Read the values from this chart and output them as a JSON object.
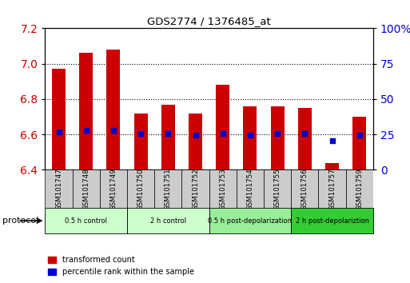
{
  "title": "GDS2774 / 1376485_at",
  "samples": [
    "GSM101747",
    "GSM101748",
    "GSM101749",
    "GSM101750",
    "GSM101751",
    "GSM101752",
    "GSM101753",
    "GSM101754",
    "GSM101755",
    "GSM101756",
    "GSM101757",
    "GSM101759"
  ],
  "transformed_counts": [
    6.97,
    7.06,
    7.08,
    6.72,
    6.77,
    6.72,
    6.88,
    6.76,
    6.76,
    6.75,
    6.44,
    6.7
  ],
  "percentile_ranks": [
    6.615,
    6.625,
    6.625,
    6.605,
    6.605,
    6.595,
    6.605,
    6.595,
    6.605,
    6.605,
    6.565,
    6.595
  ],
  "ylim_left": [
    6.4,
    7.2
  ],
  "ylim_right": [
    0,
    100
  ],
  "yticks_left": [
    6.4,
    6.6,
    6.8,
    7.0,
    7.2
  ],
  "yticks_right": [
    0,
    25,
    50,
    75,
    100
  ],
  "bar_color": "#cc0000",
  "dot_color": "#0000cc",
  "bar_bottom": 6.4,
  "protocol_groups": [
    {
      "label": "0.5 h control",
      "start": 0,
      "end": 3,
      "color": "#ccffcc"
    },
    {
      "label": "2 h control",
      "start": 3,
      "end": 6,
      "color": "#ccffcc"
    },
    {
      "label": "0.5 h post-depolarization",
      "start": 6,
      "end": 9,
      "color": "#99ee99"
    },
    {
      "label": "2 h post-depolariztion",
      "start": 9,
      "end": 12,
      "color": "#33cc33"
    }
  ],
  "legend_bar_label": "transformed count",
  "legend_dot_label": "percentile rank within the sample",
  "xlabel_protocol": "protocol",
  "tick_label_color_left": "#cc0000",
  "tick_label_color_right": "#0000cc",
  "sample_bg_color": "#cccccc",
  "plot_bg_color": "#ffffff"
}
